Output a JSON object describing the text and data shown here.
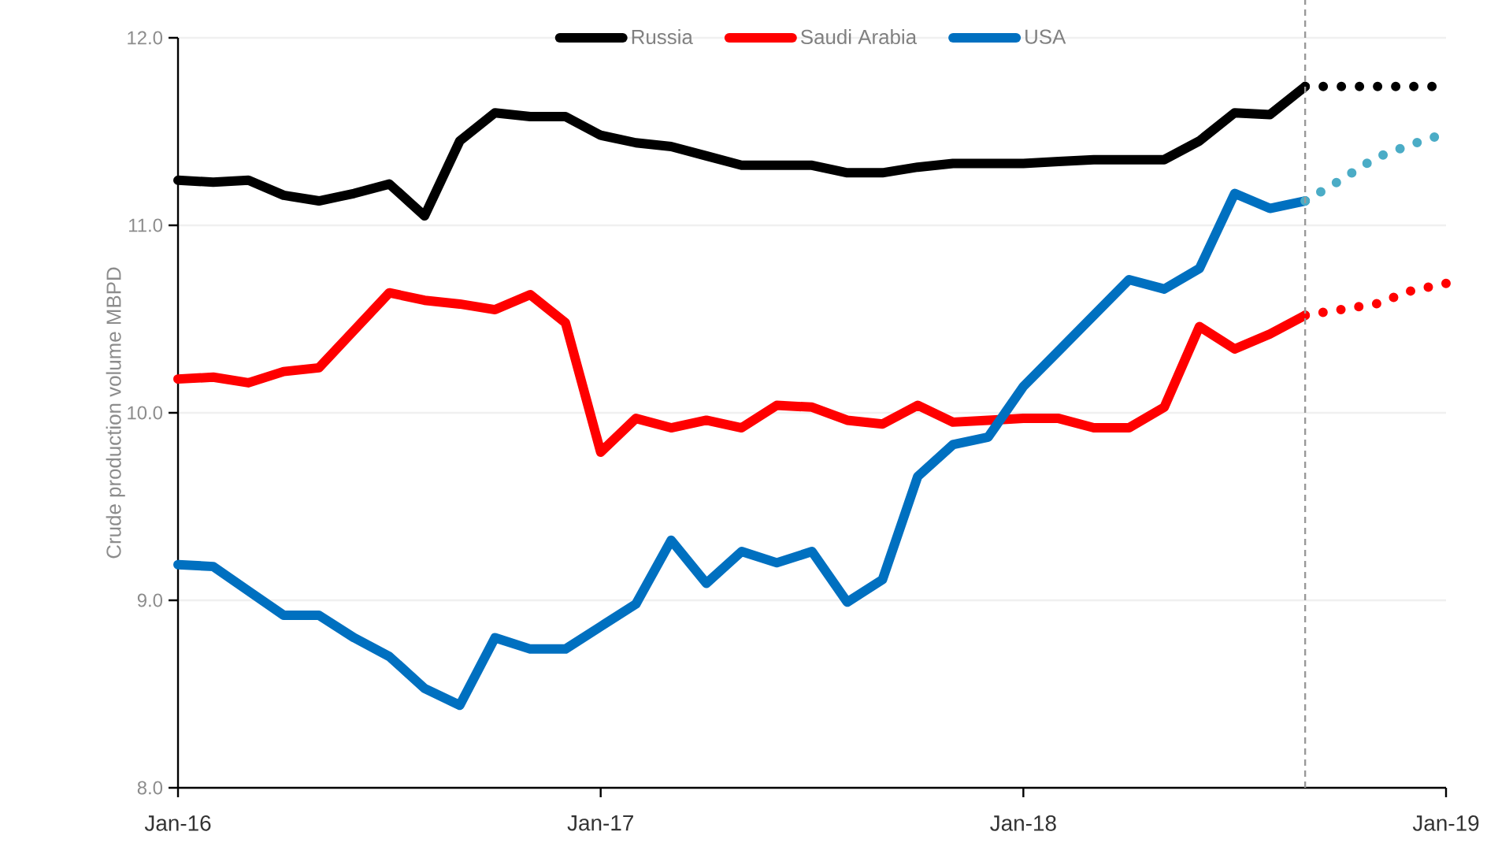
{
  "chart_data": {
    "type": "line",
    "ylabel": "Crude production volume MBPD",
    "x": [
      "2016-01",
      "2016-02",
      "2016-03",
      "2016-04",
      "2016-05",
      "2016-06",
      "2016-07",
      "2016-08",
      "2016-09",
      "2016-10",
      "2016-11",
      "2016-12",
      "2017-01",
      "2017-02",
      "2017-03",
      "2017-04",
      "2017-05",
      "2017-06",
      "2017-07",
      "2017-08",
      "2017-09",
      "2017-10",
      "2017-11",
      "2017-12",
      "2018-01",
      "2018-02",
      "2018-03",
      "2018-04",
      "2018-05",
      "2018-06",
      "2018-07",
      "2018-08",
      "2018-09"
    ],
    "series": [
      {
        "name": "Russia",
        "color": "#000000",
        "values": [
          11.24,
          11.23,
          11.24,
          11.16,
          11.13,
          11.17,
          11.22,
          11.05,
          11.45,
          11.6,
          11.58,
          11.58,
          11.48,
          11.44,
          11.42,
          11.37,
          11.32,
          11.32,
          11.32,
          11.28,
          11.28,
          11.31,
          11.33,
          11.33,
          11.33,
          11.34,
          11.35,
          11.35,
          11.35,
          11.45,
          11.6,
          11.59,
          11.74
        ]
      },
      {
        "name": "Saudi Arabia",
        "color": "#ff0000",
        "values": [
          10.18,
          10.19,
          10.16,
          10.22,
          10.24,
          10.44,
          10.64,
          10.6,
          10.58,
          10.55,
          10.63,
          10.48,
          9.79,
          9.97,
          9.92,
          9.96,
          9.92,
          10.04,
          10.03,
          9.96,
          9.94,
          10.04,
          9.95,
          9.96,
          9.97,
          9.97,
          9.92,
          9.92,
          10.03,
          10.46,
          10.34,
          10.42,
          10.52
        ]
      },
      {
        "name": "USA",
        "color": "#0070c0",
        "values": [
          9.19,
          9.18,
          9.05,
          8.92,
          8.92,
          8.8,
          8.7,
          8.53,
          8.44,
          8.8,
          8.74,
          8.74,
          8.86,
          8.98,
          9.32,
          9.09,
          9.26,
          9.2,
          9.26,
          8.99,
          9.11,
          9.66,
          9.83,
          9.87,
          10.14,
          10.33,
          10.52,
          10.71,
          10.66,
          10.77,
          11.17,
          11.09,
          11.13
        ]
      },
      {
        "color": "#000000",
        "line_style": "dotted",
        "x": [
          "2018-09",
          "2018-10",
          "2018-11",
          "2018-12",
          "2019-01"
        ],
        "values": [
          11.74,
          11.74,
          11.74,
          11.74,
          11.74
        ]
      },
      {
        "color": "#4bacc6",
        "line_style": "dotted",
        "x": [
          "2018-09",
          "2018-10",
          "2018-11",
          "2018-12",
          "2019-01"
        ],
        "values": [
          11.13,
          11.24,
          11.36,
          11.43,
          11.49
        ]
      },
      {
        "color": "#ff0000",
        "line_style": "dotted",
        "x": [
          "2018-09",
          "2018-10",
          "2018-11",
          "2018-12",
          "2019-01"
        ],
        "values": [
          10.52,
          10.55,
          10.58,
          10.65,
          10.69
        ]
      }
    ],
    "xlim": [
      "2016-01",
      "2019-01"
    ],
    "xticks": [
      {
        "value": "2016-01",
        "label": "Jan-16"
      },
      {
        "value": "2017-01",
        "label": "Jan-17"
      },
      {
        "value": "2018-01",
        "label": "Jan-18"
      },
      {
        "value": "2019-01",
        "label": "Jan-19"
      }
    ],
    "ylim": [
      8,
      12
    ],
    "yticks": [
      {
        "value": 8,
        "label": "8.0"
      },
      {
        "value": 9,
        "label": "9.0"
      },
      {
        "value": 10,
        "label": "10.0"
      },
      {
        "value": 11,
        "label": "11.0"
      },
      {
        "value": 12,
        "label": "12.0"
      }
    ],
    "ref_lines": [
      {
        "axis": "x",
        "value": "2018-09",
        "color": "#999999",
        "line_style": "dashed"
      }
    ],
    "grid": "y",
    "legend": "top",
    "marker": "none",
    "line_style": "solid"
  }
}
